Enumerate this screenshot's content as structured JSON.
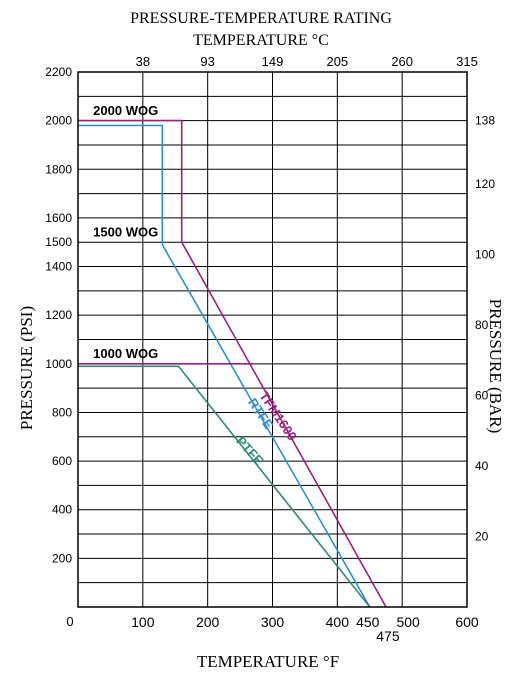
{
  "chart_data": {
    "type": "line",
    "title": "PRESSURE-TEMPERATURE RATING",
    "top_axis_label": "TEMPERATURE °C",
    "xlabel": "TEMPERATURE °F",
    "ylabel": "PRESSURE (PSI)",
    "y2label": "PRESSURE (BAR)",
    "xlim": [
      0,
      600
    ],
    "ylim": [
      0,
      2200
    ],
    "grid": true,
    "x_ticks": [
      {
        "value": 100,
        "label": "100"
      },
      {
        "value": 200,
        "label": "200"
      },
      {
        "value": 300,
        "label": "300"
      },
      {
        "value": 400,
        "label": "400"
      },
      {
        "value": 450,
        "label": "450"
      },
      {
        "value": 475,
        "label": "475"
      },
      {
        "value": 500,
        "label": "500"
      },
      {
        "value": 600,
        "label": "600"
      }
    ],
    "x_origin_label": "0",
    "x_top_ticks": [
      {
        "value": 100,
        "label": "38"
      },
      {
        "value": 200,
        "label": "93"
      },
      {
        "value": 300,
        "label": "149"
      },
      {
        "value": 400,
        "label": "205"
      },
      {
        "value": 500,
        "label": "260"
      },
      {
        "value": 600,
        "label": "315"
      }
    ],
    "y_ticks": [
      {
        "value": 200,
        "label": "200"
      },
      {
        "value": 400,
        "label": "400"
      },
      {
        "value": 600,
        "label": "600"
      },
      {
        "value": 800,
        "label": "800"
      },
      {
        "value": 1000,
        "label": "1000"
      },
      {
        "value": 1200,
        "label": "1200"
      },
      {
        "value": 1400,
        "label": "1400"
      },
      {
        "value": 1500,
        "label": "1500"
      },
      {
        "value": 1600,
        "label": "1600"
      },
      {
        "value": 1800,
        "label": "1800"
      },
      {
        "value": 2000,
        "label": "2000"
      },
      {
        "value": 2200,
        "label": "2200"
      }
    ],
    "y_grid": [
      100,
      200,
      300,
      400,
      500,
      600,
      700,
      800,
      900,
      1000,
      1100,
      1200,
      1300,
      1400,
      1500,
      1600,
      1700,
      1800,
      1900,
      2000,
      2100,
      2200
    ],
    "y2_ticks": [
      {
        "value": 290,
        "label": "20"
      },
      {
        "value": 580,
        "label": "40"
      },
      {
        "value": 870,
        "label": "60"
      },
      {
        "value": 1160,
        "label": "80"
      },
      {
        "value": 1450,
        "label": "100"
      },
      {
        "value": 1740,
        "label": "120"
      },
      {
        "value": 2000,
        "label": "138"
      }
    ],
    "series": [
      {
        "name": "TFM1600",
        "color": "#9c1f80",
        "x": [
          0,
          160,
          160,
          475
        ],
        "y": [
          2000,
          2000,
          1500,
          0
        ]
      },
      {
        "name": "RTFE",
        "color": "#2a8fd6",
        "x": [
          0,
          130,
          130,
          450
        ],
        "y": [
          1980,
          1980,
          1490,
          0
        ]
      },
      {
        "name": "PTFE",
        "color": "#2e8b7a",
        "x": [
          0,
          155,
          450
        ],
        "y": [
          990,
          990,
          0
        ]
      },
      {
        "name": "1000 WOG",
        "color": "#9c1f80",
        "x": [
          0,
          270
        ],
        "y": [
          1000,
          1000
        ]
      }
    ],
    "annotations": [
      {
        "text": "2000 WOG",
        "x": 8,
        "y": 2020
      },
      {
        "text": "1500 WOG",
        "x": 8,
        "y": 1520
      },
      {
        "text": "1000 WOG",
        "x": 8,
        "y": 1020
      }
    ],
    "series_labels": [
      {
        "text": "TFM1600",
        "x": 303,
        "y": 775,
        "angle": 56,
        "color": "#9c1f80"
      },
      {
        "text": "RTFE",
        "x": 276,
        "y": 785,
        "angle": 56,
        "color": "#2a8fd6"
      },
      {
        "text": "PTFE",
        "x": 260,
        "y": 630,
        "angle": 48,
        "color": "#2e8b7a"
      }
    ]
  }
}
